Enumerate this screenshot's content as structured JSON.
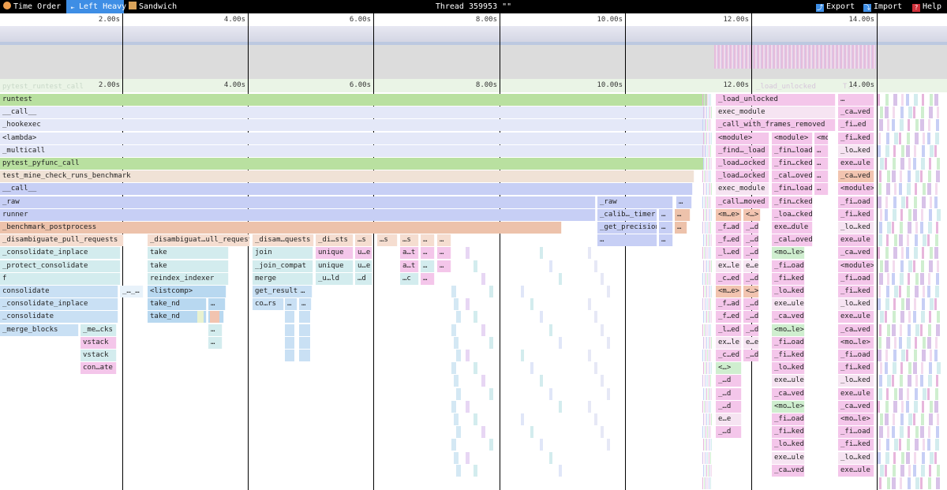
{
  "toolbar": {
    "time_order": "Time Order",
    "left_heavy": "Left Heavy",
    "sandwich": "Sandwich",
    "thread_title": "Thread 359953 \"\"",
    "export": "Export",
    "import": "Import",
    "help": "Help"
  },
  "ticks": [
    "2.00s",
    "4.00s",
    "6.00s",
    "8.00s",
    "10.00s",
    "12.00s",
    "14.00s"
  ],
  "flame": {
    "header_label": "pytest_runtest_call",
    "right_header_label": "_load_unlocked",
    "right_header_label2": "T..."
  },
  "colors": {
    "accent": "#3e8ee5",
    "green": "#b9e0a0",
    "lavender": "#e4e8f8",
    "blue": "#c7cff5",
    "salmon": "#edc2ab",
    "teal": "#d3ecee",
    "pink": "#f4c6ea"
  },
  "frames": [
    "runtest",
    "__call__",
    "_hookexec",
    "<lambda>",
    "_multicall",
    "pytest_pyfunc_call",
    "test_mine_check_runs_benchmark",
    "__call__",
    "_raw",
    "runner",
    "_benchmark_postprocess",
    "_disambiguate_pull_requests",
    "_consolidate_inplace",
    "_protect_consolidate",
    "f",
    "consolidate",
    "_consolidate_inplace",
    "_consolidate",
    "_merge_blocks",
    "_me…cks",
    "vstack",
    "vstack",
    "con…ate",
    "_…_…",
    "_disambiguat…ull_requests",
    "take",
    "take",
    "reindex_indexer",
    "<listcomp>",
    "take_nd",
    "take_nd",
    "…",
    "…",
    "…",
    "…",
    "_disam…quests",
    "join",
    "_join_compat",
    "merge",
    "get_result",
    "…",
    "co…rs",
    "…",
    "…",
    "_di…sts",
    "unique",
    "unique",
    "_u…ld",
    "…s",
    "u…e",
    "u…e",
    "…d",
    "…s",
    "…s",
    "a…t",
    "a…t",
    "…c",
    "…",
    "…",
    "…",
    "…",
    "…",
    "…",
    "…",
    "_raw",
    "…",
    "_calib…_timer",
    "…",
    "…",
    "_get_precision",
    "…",
    "…",
    "…",
    "…",
    "_load_unlocked",
    "exec_module",
    "_call_with_frames_removed",
    "<module>",
    "_find…_load",
    "_load…ocked",
    "_load…ocked",
    "exec_module",
    "_call…moved",
    "<m…e>",
    "_f…ad",
    "_f…ed",
    "_l…ed",
    "ex…le",
    "_c…ed",
    "<m…e>",
    "_f…ad",
    "_f…ed",
    "_l…ed",
    "ex…le",
    "_c…ed",
    "<…>",
    "_…d",
    "_…d",
    "_…d",
    "e…e",
    "_…d",
    "<…>",
    "_…d",
    "_…d",
    "_…d",
    "e…e",
    "_…d",
    "<…>",
    "_…d",
    "_…d",
    "_…d",
    "e…e",
    "_…d",
    "<module>",
    "_fin…load",
    "_fin…cked",
    "_cal…oved",
    "_fin…load",
    "_fin…cked",
    "_loa…cked",
    "exe…dule",
    "_cal…oved",
    "<mo…le>",
    "_fi…oad",
    "_fi…ked",
    "_lo…ked",
    "exe…ule",
    "_ca…ved",
    "<mo…le>",
    "_fi…oad",
    "_fi…ked",
    "_lo…ked",
    "exe…ule",
    "_ca…ved",
    "<mo…le>",
    "_fi…oad",
    "_fi…ked",
    "_lo…ked",
    "exe…ule",
    "_ca…ved",
    "<mo…le>",
    "…",
    "…",
    "…",
    "…",
    "…",
    "_ca…ved",
    "_fi…ed",
    "_fi…ked",
    "_lo…ked",
    "exe…ule",
    "_ca…ved",
    "<module>",
    "_fi…oad",
    "_fi…ked",
    "_lo…ked",
    "exe…ule",
    "_ca…ved",
    "<module>",
    "_fi…oad",
    "_fi…ked",
    "_lo…ked",
    "exe…ule",
    "_ca…ved",
    "<mo…le>",
    "_fi…oad",
    "_fi…ked",
    "_lo…ked",
    "exe…ule",
    "_ca…ved",
    "<mo…le>",
    "_fi…oad",
    "_fi…ked",
    "_lo…ked",
    "exe…ule",
    "_ca…ved",
    "<m…e>"
  ]
}
